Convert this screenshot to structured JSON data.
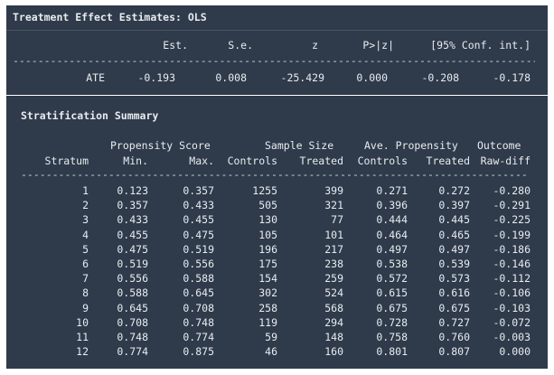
{
  "ols": {
    "title": "Treatment Effect Estimates: OLS",
    "headers": [
      "Est.",
      "S.e.",
      "z",
      "P>|z|",
      "[95% Conf. int.]"
    ],
    "dashes": "------------------------------------------------------------------------------------",
    "row": {
      "label": "ATE",
      "est": "-0.193",
      "se": "0.008",
      "z": "-25.429",
      "p": "0.000",
      "ci_low": "-0.208",
      "ci_high": "-0.178"
    }
  },
  "strat": {
    "title": "Stratification Summary",
    "group_headers": {
      "propensity": "Propensity Score",
      "sample": "Sample Size",
      "ave": "Ave. Propensity",
      "outcome": "Outcome"
    },
    "headers": [
      "Stratum",
      "Min.",
      "Max.",
      "Controls",
      "Treated",
      "Controls",
      "Treated",
      "Raw-diff"
    ],
    "dashes": "---------------------------------------------------------------------------------",
    "rows": [
      [
        "1",
        "0.123",
        "0.357",
        "1255",
        "399",
        "0.271",
        "0.272",
        "-0.280"
      ],
      [
        "2",
        "0.357",
        "0.433",
        "505",
        "321",
        "0.396",
        "0.397",
        "-0.291"
      ],
      [
        "3",
        "0.433",
        "0.455",
        "130",
        "77",
        "0.444",
        "0.445",
        "-0.225"
      ],
      [
        "4",
        "0.455",
        "0.475",
        "105",
        "101",
        "0.464",
        "0.465",
        "-0.199"
      ],
      [
        "5",
        "0.475",
        "0.519",
        "196",
        "217",
        "0.497",
        "0.497",
        "-0.186"
      ],
      [
        "6",
        "0.519",
        "0.556",
        "175",
        "238",
        "0.538",
        "0.539",
        "-0.146"
      ],
      [
        "7",
        "0.556",
        "0.588",
        "154",
        "259",
        "0.572",
        "0.573",
        "-0.112"
      ],
      [
        "8",
        "0.588",
        "0.645",
        "302",
        "524",
        "0.615",
        "0.616",
        "-0.106"
      ],
      [
        "9",
        "0.645",
        "0.708",
        "258",
        "568",
        "0.675",
        "0.675",
        "-0.103"
      ],
      [
        "10",
        "0.708",
        "0.748",
        "119",
        "294",
        "0.728",
        "0.727",
        "-0.072"
      ],
      [
        "11",
        "0.748",
        "0.774",
        "59",
        "148",
        "0.758",
        "0.760",
        "-0.003"
      ],
      [
        "12",
        "0.774",
        "0.875",
        "46",
        "160",
        "0.801",
        "0.807",
        "0.000"
      ]
    ]
  }
}
